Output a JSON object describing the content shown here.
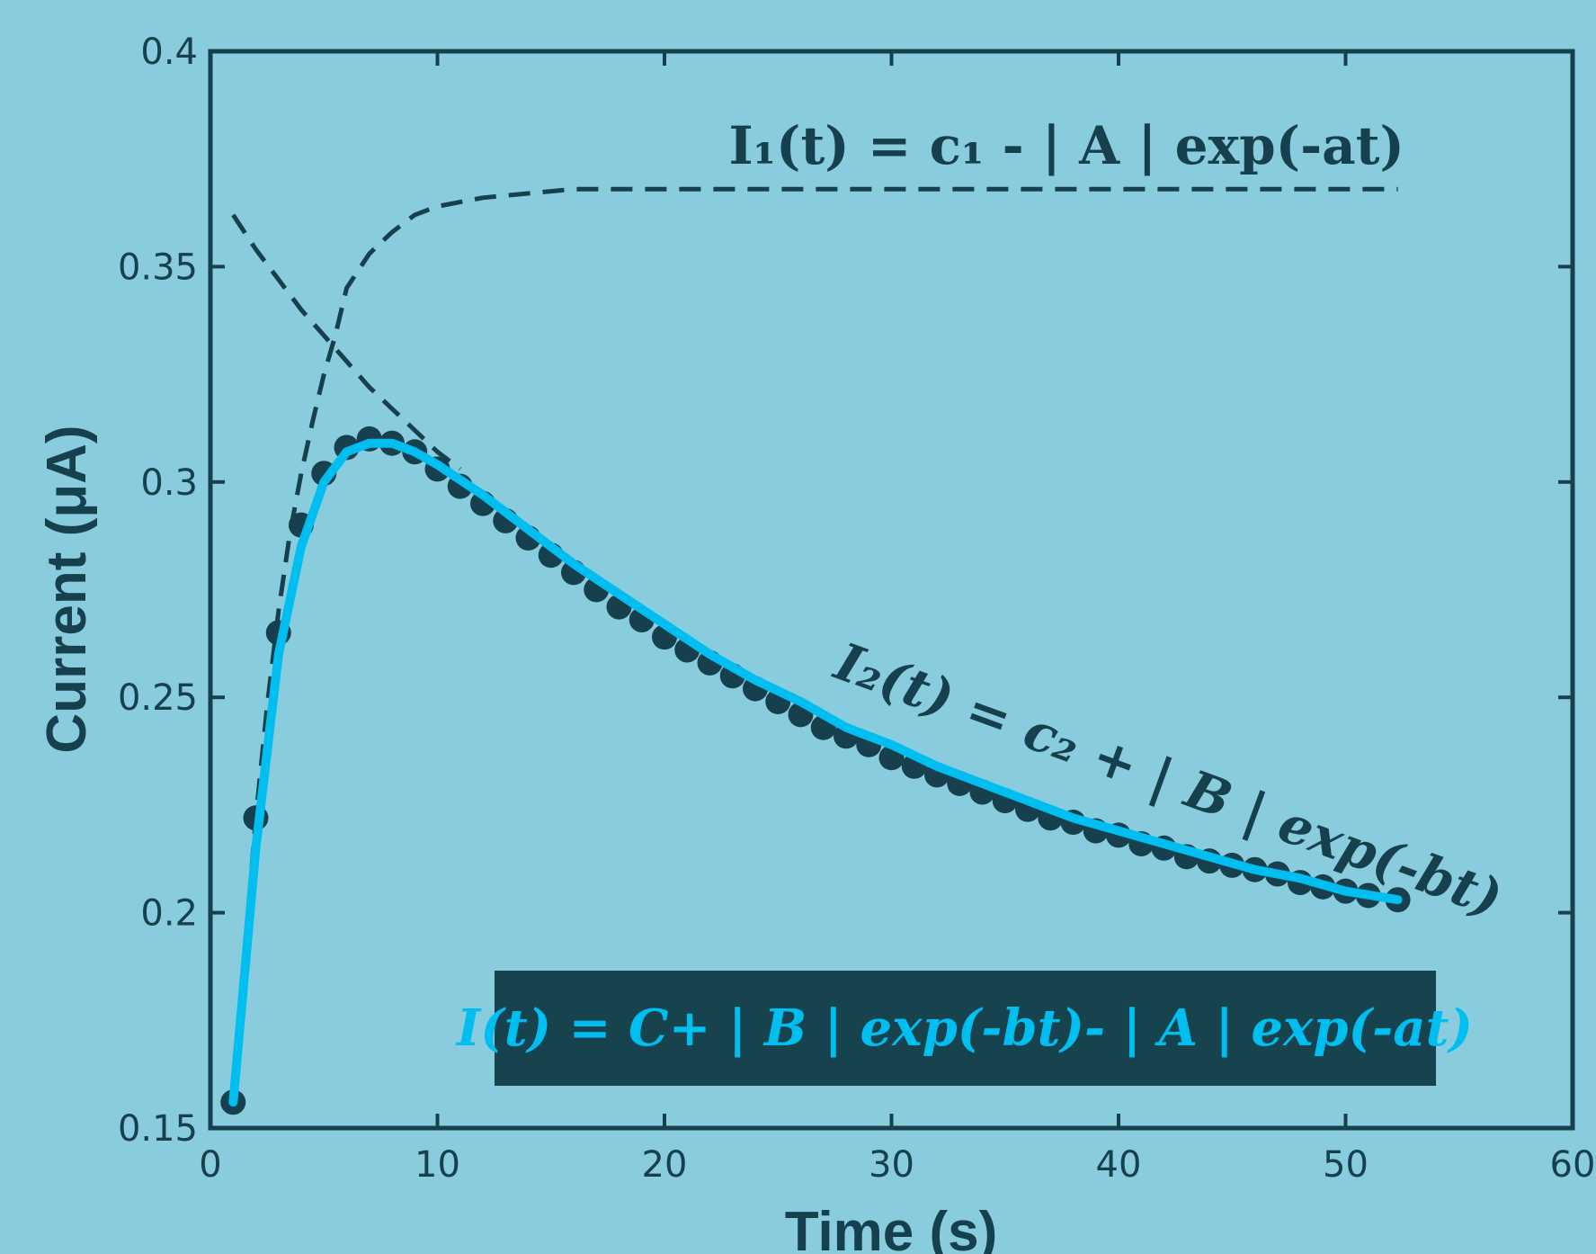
{
  "colors": {
    "background": "#89ccdd",
    "axis": "#17404e",
    "fit_line": "#00bff0",
    "marker": "#17404e",
    "box_fill": "#17434f"
  },
  "chart_data": {
    "type": "line",
    "xlabel": "Time (s)",
    "ylabel": "Current (μA)",
    "xlim": [
      0,
      60
    ],
    "ylim": [
      0.15,
      0.4
    ],
    "xticks": [
      0,
      10,
      20,
      30,
      40,
      50,
      60
    ],
    "yticks": [
      0.15,
      0.2,
      0.25,
      0.3,
      0.35,
      0.4
    ],
    "xtick_labels": [
      "0",
      "10",
      "20",
      "30",
      "40",
      "50",
      "60"
    ],
    "ytick_labels": [
      "0.15",
      "0.2",
      "0.25",
      "0.3",
      "0.35",
      "0.4"
    ],
    "grid": false,
    "annotations": {
      "i1": "I₁(t) = c₁ - | A | exp(-at)",
      "i2": "I₂(t) = c₂ + | B | exp(-bt)",
      "combined": "I(t) = C+ | B | exp(-bt)- | A | exp(-at)"
    },
    "series": [
      {
        "style": "markers",
        "x": [
          1,
          2,
          3,
          4,
          5,
          6,
          7,
          8,
          9,
          10,
          11,
          12,
          13,
          14,
          15,
          16,
          17,
          18,
          19,
          20,
          21,
          22,
          23,
          24,
          25,
          26,
          27,
          28,
          29,
          30,
          31,
          32,
          33,
          34,
          35,
          36,
          37,
          38,
          39,
          40,
          41,
          42,
          43,
          44,
          45,
          46,
          47,
          48,
          49,
          50,
          51,
          52.3
        ],
        "y": [
          0.156,
          0.222,
          0.265,
          0.29,
          0.302,
          0.308,
          0.31,
          0.309,
          0.307,
          0.303,
          0.299,
          0.295,
          0.291,
          0.287,
          0.283,
          0.279,
          0.275,
          0.271,
          0.268,
          0.264,
          0.261,
          0.258,
          0.255,
          0.252,
          0.249,
          0.246,
          0.243,
          0.241,
          0.239,
          0.236,
          0.234,
          0.232,
          0.23,
          0.228,
          0.226,
          0.224,
          0.222,
          0.221,
          0.219,
          0.218,
          0.216,
          0.215,
          0.213,
          0.212,
          0.211,
          0.21,
          0.209,
          0.207,
          0.206,
          0.205,
          0.204,
          0.203
        ]
      },
      {
        "style": "solid",
        "x": [
          1,
          2,
          3,
          4,
          5,
          6,
          7,
          8,
          9,
          10,
          12,
          14,
          16,
          18,
          20,
          22,
          24,
          26,
          28,
          30,
          32,
          34,
          36,
          38,
          40,
          42,
          44,
          46,
          48,
          50,
          52.3
        ],
        "y": [
          0.156,
          0.215,
          0.26,
          0.285,
          0.3,
          0.307,
          0.309,
          0.309,
          0.307,
          0.304,
          0.297,
          0.289,
          0.281,
          0.274,
          0.267,
          0.26,
          0.254,
          0.249,
          0.243,
          0.239,
          0.234,
          0.23,
          0.226,
          0.222,
          0.219,
          0.216,
          0.213,
          0.21,
          0.208,
          0.205,
          0.203
        ]
      },
      {
        "style": "dashed",
        "x": [
          1,
          1.5,
          2,
          2.5,
          3,
          3.5,
          4,
          4.5,
          5,
          5.5,
          6,
          7,
          8,
          9,
          10,
          11,
          12,
          14,
          16,
          20,
          25,
          30,
          35,
          40,
          45,
          50,
          52.3
        ],
        "y": [
          0.155,
          0.19,
          0.222,
          0.248,
          0.27,
          0.288,
          0.302,
          0.314,
          0.325,
          0.334,
          0.345,
          0.353,
          0.358,
          0.362,
          0.364,
          0.365,
          0.366,
          0.367,
          0.368,
          0.368,
          0.368,
          0.368,
          0.368,
          0.368,
          0.368,
          0.368,
          0.368
        ]
      },
      {
        "style": "dashed",
        "x": [
          1,
          2,
          3,
          4,
          5,
          6,
          7,
          8,
          9,
          10,
          11
        ],
        "y": [
          0.362,
          0.354,
          0.347,
          0.34,
          0.334,
          0.328,
          0.322,
          0.317,
          0.312,
          0.307,
          0.303
        ]
      }
    ]
  }
}
